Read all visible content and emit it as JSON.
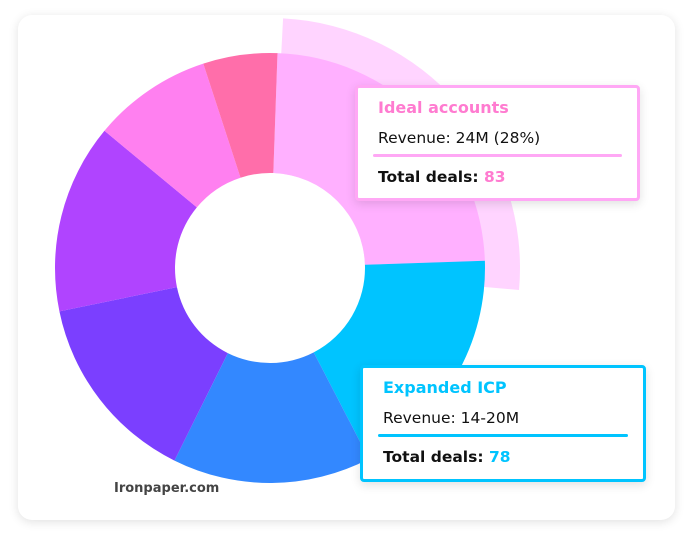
{
  "chart_data": {
    "type": "pie",
    "variant": "donut",
    "segments": [
      {
        "label": "Ideal accounts",
        "color": "#FFB0FF",
        "share": 0.24,
        "highlighted": true
      },
      {
        "color": "#00C4FF",
        "share": 0.18
      },
      {
        "color": "#3388FF",
        "share": 0.15
      },
      {
        "color": "#7B3FFF",
        "share": 0.145
      },
      {
        "color": "#B044FF",
        "share": 0.143
      },
      {
        "color": "#FF80F0",
        "share": 0.09
      },
      {
        "color": "#FF6EAA",
        "share": 0.056
      }
    ]
  },
  "tooltips": [
    {
      "title": "Ideal accounts",
      "revenue": "Revenue: 24M (28%)",
      "deals_label": "Total deals:",
      "deals_value": "83",
      "color": "#FF7BD0",
      "border": "#FFA8F5"
    },
    {
      "title": "Expanded ICP",
      "revenue": "Revenue: 14-20M",
      "deals_label": "Total deals:",
      "deals_value": "78",
      "color": "#00C4FF",
      "border": "#00C4FF"
    }
  ],
  "watermark": "Ironpaper.com"
}
